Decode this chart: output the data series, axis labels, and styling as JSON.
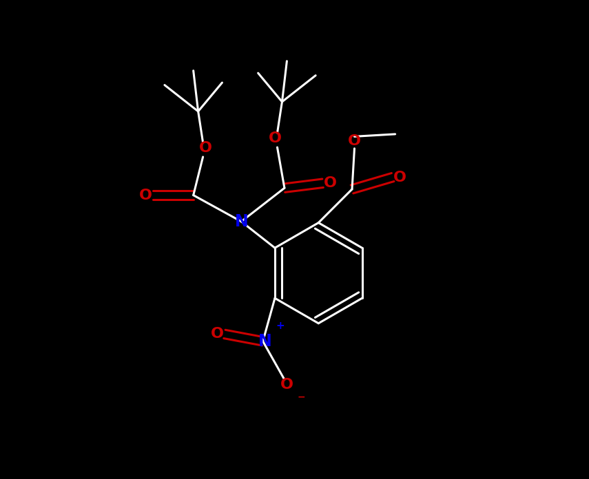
{
  "background_color": "#000000",
  "bond_color": "#ffffff",
  "O_color": "#cc0000",
  "N_color": "#0000ee",
  "line_width": 2.2,
  "figsize": [
    8.55,
    6.96
  ],
  "dpi": 100,
  "xlim": [
    -1,
    11
  ],
  "ylim": [
    -0.5,
    9.5
  ]
}
